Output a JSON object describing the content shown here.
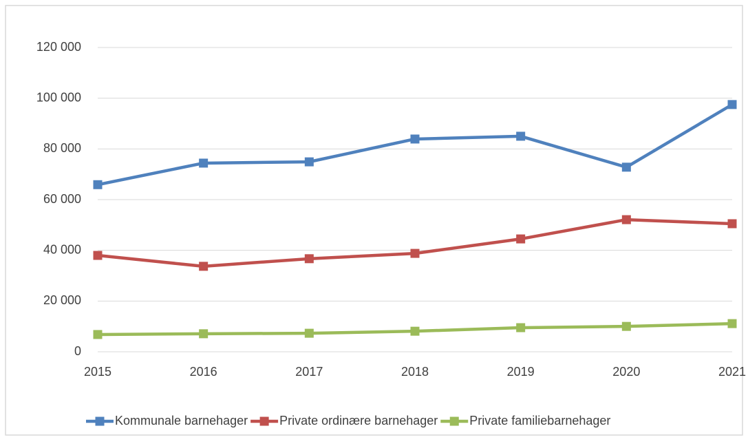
{
  "chart_data": {
    "type": "line",
    "categories": [
      "2015",
      "2016",
      "2017",
      "2018",
      "2019",
      "2020",
      "2021"
    ],
    "series": [
      {
        "name": "Kommunale barnehager",
        "color": "#4f81bd",
        "values": [
          65900,
          74400,
          74900,
          83900,
          85000,
          72800,
          97500
        ]
      },
      {
        "name": "Private ordinære barnehager",
        "color": "#c0504d",
        "values": [
          38000,
          33700,
          36700,
          38800,
          44500,
          52100,
          50500
        ]
      },
      {
        "name": "Private familiebarnehager",
        "color": "#9bbb59",
        "values": [
          6800,
          7100,
          7300,
          8100,
          9500,
          10000,
          11100
        ]
      }
    ],
    "ylim": [
      0,
      120000
    ],
    "yticks": [
      0,
      {
        "value": 20000,
        "label": "20 000"
      },
      {
        "value": 40000,
        "label": "40 000"
      },
      {
        "value": 60000,
        "label": "60 000"
      },
      {
        "value": 80000,
        "label": "80 000"
      },
      {
        "value": 100000,
        "label": "100 000"
      },
      {
        "value": 120000,
        "label": "120 000"
      }
    ],
    "grid": true,
    "legend": "bottom"
  }
}
